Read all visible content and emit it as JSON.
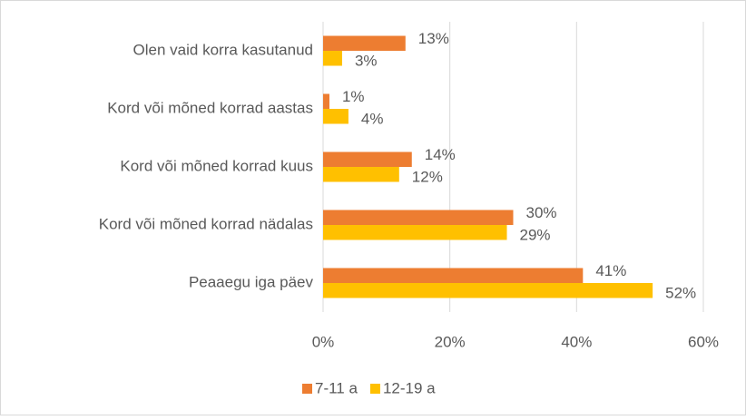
{
  "chart_data": {
    "type": "barh",
    "categories": [
      "Olen vaid korra kasutanud",
      "Kord või mõned korrad aastas",
      "Kord või mõned korrad kuus",
      "Kord või mõned korrad nädalas",
      "Peaaegu iga päev"
    ],
    "series": [
      {
        "name": "7-11 a",
        "color": "#ed7d31",
        "values": [
          13,
          1,
          14,
          30,
          41
        ],
        "value_labels": [
          "13%",
          "1%",
          "14%",
          "30%",
          "41%"
        ]
      },
      {
        "name": "12-19 a",
        "color": "#ffc000",
        "values": [
          3,
          4,
          12,
          29,
          52
        ],
        "value_labels": [
          "3%",
          "4%",
          "12%",
          "29%",
          "52%"
        ]
      }
    ],
    "xlim": [
      0,
      60
    ],
    "xticks": [
      {
        "value": 0,
        "label": "0%"
      },
      {
        "value": 20,
        "label": "20%"
      },
      {
        "value": 40,
        "label": "40%"
      },
      {
        "value": 60,
        "label": "60%"
      }
    ],
    "grid": true,
    "legend": "bottom"
  }
}
